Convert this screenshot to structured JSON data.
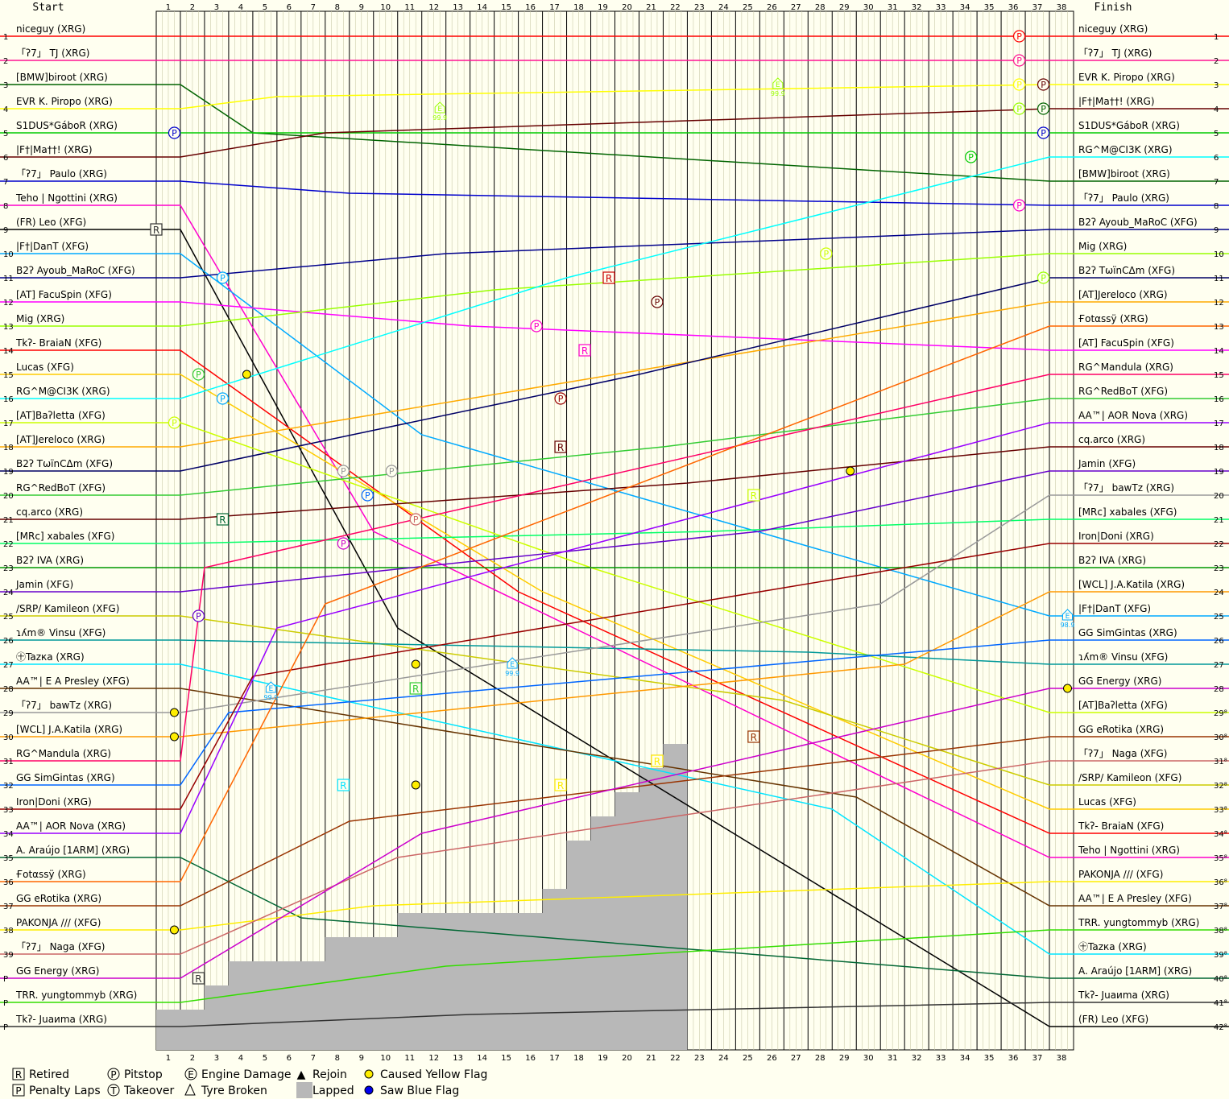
{
  "chart_data": {
    "type": "line",
    "start_label": "Start",
    "finish_label": "Finish",
    "laps": 38,
    "laps_ticks": [
      1,
      2,
      3,
      4,
      5,
      6,
      7,
      8,
      9,
      10,
      11,
      12,
      13,
      14,
      15,
      16,
      17,
      18,
      19,
      20,
      21,
      22,
      23,
      24,
      25,
      26,
      27,
      28,
      29,
      30,
      31,
      32,
      33,
      34,
      35,
      36,
      37,
      38
    ],
    "start_positions": [
      "1",
      "2",
      "3",
      "4",
      "5",
      "6",
      "7",
      "8",
      "9",
      "10",
      "11",
      "12",
      "13",
      "14",
      "15",
      "16",
      "17",
      "18",
      "19",
      "20",
      "21",
      "22",
      "23",
      "24",
      "25",
      "26",
      "27",
      "28",
      "29",
      "30",
      "31",
      "32",
      "33",
      "34",
      "35",
      "36",
      "37",
      "38",
      "39",
      "P",
      "P",
      "P"
    ],
    "finish_positions": [
      "1",
      "2",
      "3",
      "4",
      "5",
      "6",
      "7",
      "8",
      "9",
      "10",
      "11",
      "12",
      "13",
      "14",
      "15",
      "16",
      "17",
      "18",
      "19",
      "20",
      "21",
      "22",
      "23",
      "24",
      "25",
      "26",
      "27",
      "28",
      "29⁸",
      "30⁸",
      "31⁸",
      "32⁸",
      "33⁸",
      "34⁸",
      "35⁸",
      "36⁸",
      "37⁸",
      "38⁸",
      "39⁸",
      "40⁸",
      "41⁸",
      "42⁸"
    ],
    "start_drivers": [
      {
        "name": "niceguy (XRG)",
        "color": "#ff0000"
      },
      {
        "name": "「ʔ7」 TJ (XRG)",
        "color": "#ff1493"
      },
      {
        "name": "[BMW]biroot (XRG)",
        "color": "#006400"
      },
      {
        "name": "EVR K. Piropo (XRG)",
        "color": "#ffff00"
      },
      {
        "name": "S1DUS*GáboR (XRG)",
        "color": "#00cc00"
      },
      {
        "name": "|F†|Ma††! (XRG)",
        "color": "#660000"
      },
      {
        "name": "「ʔ7」 Paulo (XRG)",
        "color": "#0000cc"
      },
      {
        "name": "Teho | Ngottini (XRG)",
        "color": "#ff00cc"
      },
      {
        "name": "(FR) Leo (XFG)",
        "color": "#000000"
      },
      {
        "name": "|F†|DanT (XFG)",
        "color": "#00aaff"
      },
      {
        "name": "B2ʔ Ayoub_MaRoC (XFG)",
        "color": "#00008b"
      },
      {
        "name": "[AT] FacuSpin (XFG)",
        "color": "#ff00ff"
      },
      {
        "name": "Mig (XRG)",
        "color": "#99ff00"
      },
      {
        "name": "Tkʔ- BraiaN (XFG)",
        "color": "#ff0000"
      },
      {
        "name": "Lucas (XFG)",
        "color": "#ffcc00"
      },
      {
        "name": "RG^M@CI3K (XRG)",
        "color": "#00ffff"
      },
      {
        "name": "[AT]Baʔletta (XFG)",
        "color": "#ccff00"
      },
      {
        "name": "[AT]Jereloco (XRG)",
        "color": "#ffaa00"
      },
      {
        "name": "B2ʔ TωïnCΔm (XFG)",
        "color": "#000066"
      },
      {
        "name": "RG^RedBoT (XFG)",
        "color": "#33cc33"
      },
      {
        "name": "cq.arco (XRG)",
        "color": "#660000"
      },
      {
        "name": "[MRc] xabales (XFG)",
        "color": "#00ff66"
      },
      {
        "name": "B2ʔ IVA (XRG)",
        "color": "#009900"
      },
      {
        "name": "Jamin (XFG)",
        "color": "#6600cc"
      },
      {
        "name": "/SRP/ Kamileon (XFG)",
        "color": "#cccc00"
      },
      {
        "name": "ɿʎm® Vinsu (XFG)",
        "color": "#009999"
      },
      {
        "name": "㊉Tazка (XRG)",
        "color": "#00e5ff"
      },
      {
        "name": "AA™| E A Presley (XFG)",
        "color": "#663300"
      },
      {
        "name": "「ʔ7」 bawTz (XRG)",
        "color": "#999999"
      },
      {
        "name": "[WCL] J.A.Katila (XRG)",
        "color": "#ff9900"
      },
      {
        "name": "RG^Mandula (XRG)",
        "color": "#ff0066"
      },
      {
        "name": "GG SimGintas (XRG)",
        "color": "#0066ff"
      },
      {
        "name": "Iron|Doni (XRG)",
        "color": "#990000"
      },
      {
        "name": "AA™| AOR Nova (XRG)",
        "color": "#9900ff"
      },
      {
        "name": "A. Araújo [1ARM] (XRG)",
        "color": "#006633"
      },
      {
        "name": "Ғotαssÿ (XRG)",
        "color": "#ff6600"
      },
      {
        "name": "GG eRotika (XRG)",
        "color": "#993300"
      },
      {
        "name": "PAKONJA /// (XFG)",
        "color": "#ffee00"
      },
      {
        "name": "「ʔ7」 Naga (XFG)",
        "color": "#cc6666"
      },
      {
        "name": "GG Energy (XRG)",
        "color": "#cc00cc"
      },
      {
        "name": "TRR. yungtommyb (XRG)",
        "color": "#33dd00"
      },
      {
        "name": "Tkʔ- Juaиma (XRG)",
        "color": "#333333"
      }
    ],
    "finish_drivers": [
      "niceguy (XRG)",
      "「ʔ7」 TJ (XRG)",
      "EVR K. Piropo (XRG)",
      "|F†|Ma††! (XRG)",
      "S1DUS*GáboR (XRG)",
      "RG^M@CI3K (XRG)",
      "[BMW]biroot (XRG)",
      "「ʔ7」 Paulo (XRG)",
      "B2ʔ Ayoub_MaRoC (XFG)",
      "Mig (XRG)",
      "B2ʔ TωïnCΔm (XFG)",
      "[AT]Jereloco (XRG)",
      "Ғotαssÿ (XRG)",
      "[AT] FacuSpin (XFG)",
      "RG^Mandula (XRG)",
      "RG^RedBoT (XFG)",
      "AA™| AOR Nova (XRG)",
      "cq.arco (XRG)",
      "Jamin (XFG)",
      "「ʔ7」 bawTz (XRG)",
      "[MRc] xabales (XFG)",
      "Iron|Doni (XRG)",
      "B2ʔ IVA (XRG)",
      "[WCL] J.A.Katila (XRG)",
      "|F†|DanT (XFG)",
      "GG SimGintas (XRG)",
      "ɿʎm® Vinsu (XFG)",
      "GG Energy (XRG)",
      "[AT]Baʔletta (XFG)",
      "GG eRotika (XRG)",
      "「ʔ7」 Naga (XFG)",
      "/SRP/ Kamileon (XFG)",
      "Lucas (XFG)",
      "Tkʔ- BraiaN (XFG)",
      "Teho | Ngottini (XRG)",
      "PAKONJA /// (XFG)",
      "AA™| E A Presley (XFG)",
      "TRR. yungtommyb (XRG)",
      "㊉Tazка (XRG)",
      "A. Araújo [1ARM] (XRG)",
      "Tkʔ- Juaиma (XRG)",
      "(FR) Leo (XFG)"
    ],
    "lapped_counts": [
      2,
      2,
      3,
      4,
      4,
      4,
      4,
      5,
      5,
      5,
      6,
      6,
      6,
      6,
      6,
      6,
      7,
      9,
      10,
      11,
      12,
      13
    ],
    "legend": [
      {
        "icon": "R",
        "label": "Retired"
      },
      {
        "icon": "P",
        "label": "Pitstop"
      },
      {
        "icon": "E",
        "label": "Engine Damage"
      },
      {
        "icon": "▲",
        "label": "Rejoin"
      },
      {
        "icon": "yellow-dot",
        "label": "Caused Yellow Flag"
      },
      {
        "icon": "P",
        "label": "Penalty Laps"
      },
      {
        "icon": "T",
        "label": "Takeover"
      },
      {
        "icon": "tyre",
        "label": "Tyre Broken"
      },
      {
        "icon": "gray-box",
        "label": "Lapped"
      },
      {
        "icon": "blue-dot",
        "label": "Saw Blue Flag"
      }
    ],
    "markers": [
      {
        "kind": "P",
        "lap": 36,
        "pos": 1,
        "color": "#ff0000"
      },
      {
        "kind": "P",
        "lap": 36,
        "pos": 2,
        "color": "#ff1493"
      },
      {
        "kind": "P",
        "lap": 36,
        "pos": 3,
        "color": "#ffff00"
      },
      {
        "kind": "P",
        "lap": 37,
        "pos": 3,
        "color": "#660000"
      },
      {
        "kind": "P",
        "lap": 37,
        "pos": 4,
        "color": "#006400"
      },
      {
        "kind": "P",
        "lap": 36,
        "pos": 4,
        "color": "#99ff00"
      },
      {
        "kind": "P",
        "lap": 37,
        "pos": 5,
        "color": "#0000cc"
      },
      {
        "kind": "P",
        "lap": 1,
        "pos": 5,
        "color": "#0000cc"
      },
      {
        "kind": "P",
        "lap": 34,
        "pos": 6,
        "color": "#00cc00"
      },
      {
        "kind": "P",
        "lap": 36,
        "pos": 8,
        "color": "#ff00cc"
      },
      {
        "kind": "P",
        "lap": 28,
        "pos": 10,
        "color": "#ccff00"
      },
      {
        "kind": "P",
        "lap": 37,
        "pos": 11,
        "color": "#99ff00"
      },
      {
        "kind": "P",
        "lap": 3,
        "pos": 11,
        "color": "#00aaff"
      },
      {
        "kind": "R",
        "lap": 19,
        "pos": 11,
        "color": "#cc0000"
      },
      {
        "kind": "P",
        "lap": 21,
        "pos": 12,
        "color": "#660000"
      },
      {
        "kind": "P",
        "lap": 16,
        "pos": 13,
        "color": "#ff00cc"
      },
      {
        "kind": "R",
        "lap": 18,
        "pos": 14,
        "color": "#ff00cc"
      },
      {
        "kind": "P",
        "lap": 17,
        "pos": 16,
        "color": "#990000"
      },
      {
        "kind": "P",
        "lap": 2,
        "pos": 15,
        "color": "#33cc33"
      },
      {
        "kind": "P",
        "lap": 3,
        "pos": 16,
        "color": "#00aaff"
      },
      {
        "kind": "P",
        "lap": 1,
        "pos": 17,
        "color": "#ccff00"
      },
      {
        "kind": "R",
        "lap": 17,
        "pos": 18,
        "color": "#660000"
      },
      {
        "kind": "P",
        "lap": 8,
        "pos": 19,
        "color": "#999999"
      },
      {
        "kind": "P",
        "lap": 10,
        "pos": 19,
        "color": "#999999"
      },
      {
        "kind": "P",
        "lap": 9,
        "pos": 20,
        "color": "#0066ff"
      },
      {
        "kind": "R",
        "lap": 3,
        "pos": 21,
        "color": "#006633"
      },
      {
        "kind": "R",
        "lap": 25,
        "pos": 20,
        "color": "#ccff00"
      },
      {
        "kind": "P",
        "lap": 11,
        "pos": 21,
        "color": "#cc6666"
      },
      {
        "kind": "P",
        "lap": 8,
        "pos": 22,
        "color": "#cc00cc"
      },
      {
        "kind": "P",
        "lap": 2,
        "pos": 25,
        "color": "#6600cc"
      },
      {
        "kind": "R",
        "lap": 11,
        "pos": 28,
        "color": "#33cc33"
      },
      {
        "kind": "R",
        "lap": 8,
        "pos": 32,
        "color": "#00e5ff"
      },
      {
        "kind": "R",
        "lap": 17,
        "pos": 32,
        "color": "#ffee00"
      },
      {
        "kind": "R",
        "lap": 25,
        "pos": 30,
        "color": "#993300"
      },
      {
        "kind": "R",
        "lap": 21,
        "pos": 31,
        "color": "#cc6666"
      },
      {
        "kind": "R",
        "lap": 21,
        "pos": 31,
        "color": "#ffee00"
      },
      {
        "kind": "R",
        "lap": 2,
        "pos": 40,
        "color": "#333333"
      },
      {
        "kind": "R",
        "lap": 0,
        "pos": 9,
        "color": "#333333"
      },
      {
        "kind": "E",
        "lap": 12,
        "pos": 4,
        "color": "#99ff00"
      },
      {
        "kind": "E",
        "lap": 26,
        "pos": 3,
        "color": "#99ff00"
      },
      {
        "kind": "E",
        "lap": 5,
        "pos": 28,
        "color": "#00aaff"
      },
      {
        "kind": "E",
        "lap": 15,
        "pos": 27,
        "color": "#00aaff"
      },
      {
        "kind": "E",
        "lap": 38,
        "pos": 25,
        "color": "#00aaff"
      },
      {
        "kind": "Y",
        "lap": 4,
        "pos": 15,
        "color": "#ffff00"
      },
      {
        "kind": "Y",
        "lap": 11,
        "pos": 27,
        "color": "#ffff00"
      },
      {
        "kind": "Y",
        "lap": 11,
        "pos": 32,
        "color": "#ffff00"
      },
      {
        "kind": "Y",
        "lap": 29,
        "pos": 19,
        "color": "#ffff00"
      },
      {
        "kind": "Y",
        "lap": 38,
        "pos": 28,
        "color": "#ffff00"
      },
      {
        "kind": "Y",
        "lap": 1,
        "pos": 38,
        "color": "#ffff00"
      },
      {
        "kind": "Y",
        "lap": 1,
        "pos": 30,
        "color": "#ffff00"
      },
      {
        "kind": "Y",
        "lap": 1,
        "pos": 29,
        "color": "#ffff00"
      }
    ],
    "engine_values": [
      "99.9",
      "99.9",
      "99.9",
      "99.9",
      "98.9"
    ],
    "grid": true
  }
}
